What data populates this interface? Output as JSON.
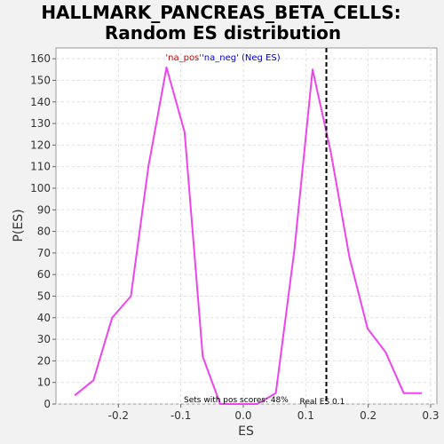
{
  "chart_data": {
    "type": "line",
    "title_line1": "HALLMARK_PANCREAS_BETA_CELLS:",
    "title_line2": "Random ES distribution",
    "xlabel": "ES",
    "ylabel": "P(ES)",
    "xlim": [
      -0.3,
      0.31
    ],
    "ylim": [
      0,
      165
    ],
    "x_ticks": [
      -0.2,
      -0.1,
      0.0,
      0.1,
      0.2,
      0.3
    ],
    "x_tick_labels": [
      "-0.2",
      "-0.1",
      "0.0",
      "0.1",
      "0.2",
      "0.3"
    ],
    "y_ticks": [
      0,
      10,
      20,
      30,
      40,
      50,
      60,
      70,
      80,
      90,
      100,
      110,
      120,
      130,
      140,
      150,
      160
    ],
    "grid": true,
    "series": [
      {
        "color": "#ee44ee",
        "x": [
          -0.27,
          -0.24,
          -0.21,
          -0.18,
          -0.152,
          -0.123,
          -0.094,
          -0.065,
          -0.037,
          -0.008,
          0.022,
          0.052,
          0.082,
          0.111,
          0.14,
          0.17,
          0.199,
          0.228,
          0.257,
          0.286
        ],
        "y": [
          4,
          11,
          40,
          50,
          110,
          156,
          126,
          22,
          0,
          0,
          0,
          5,
          72,
          155,
          117,
          68,
          35,
          24,
          5,
          5
        ]
      }
    ],
    "legend": {
      "placement": "top-center",
      "items": [
        {
          "text": "'na_pos'",
          "color": "#cc0000"
        },
        {
          "text": "'na_neg' (Neg ES)",
          "color": "#0000cc"
        }
      ]
    },
    "real_es": {
      "x": 0.133,
      "label": "Real ES 0.1"
    },
    "annotation": "Sets with pos scores: 48%",
    "colors": {
      "plot_bg": "#ffffff",
      "page_bg": "#f2f2f2",
      "grid": "#e0e0e0",
      "line": "#ee44ee"
    }
  }
}
